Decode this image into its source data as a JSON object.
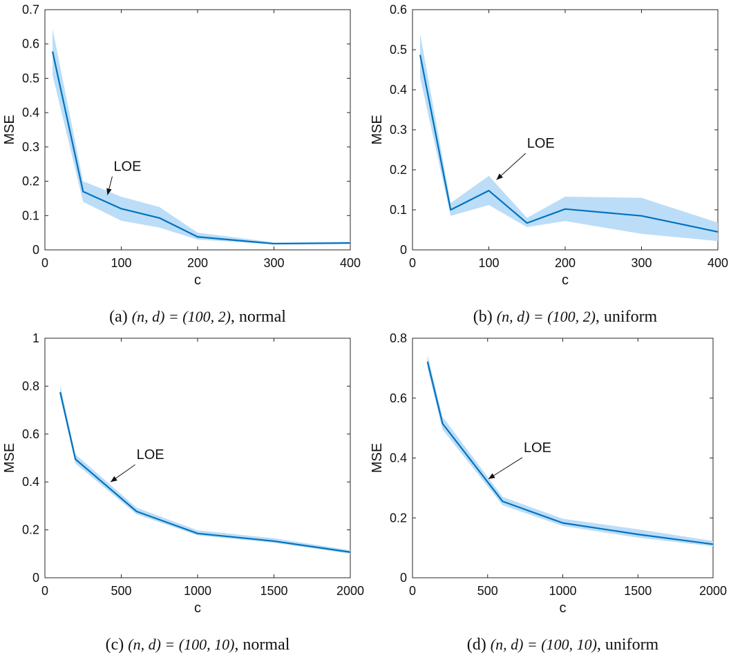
{
  "chart_data": [
    {
      "type": "line",
      "panel": "a",
      "caption_label": "(a)",
      "caption_math": "(n, d) = (100, 2)",
      "caption_suffix": ", normal",
      "xlabel": "c",
      "ylabel": "MSE",
      "xlim": [
        0,
        400
      ],
      "ylim": [
        0,
        0.7
      ],
      "xticks": [
        0,
        100,
        200,
        300,
        400
      ],
      "yticks": [
        0,
        0.1,
        0.2,
        0.3,
        0.4,
        0.5,
        0.6,
        0.7
      ],
      "xtick_labels": [
        "0",
        "100",
        "200",
        "300",
        "400"
      ],
      "ytick_labels": [
        "0",
        "0.1",
        "0.2",
        "0.3",
        "0.4",
        "0.5",
        "0.6",
        "0.7"
      ],
      "series": [
        {
          "name": "LOE",
          "x": [
            10,
            50,
            100,
            150,
            200,
            300,
            400
          ],
          "y": [
            0.578,
            0.17,
            0.12,
            0.093,
            0.038,
            0.018,
            0.02
          ],
          "lower": [
            0.51,
            0.14,
            0.085,
            0.065,
            0.03,
            0.016,
            0.017
          ],
          "upper": [
            0.645,
            0.2,
            0.155,
            0.125,
            0.05,
            0.022,
            0.024
          ]
        }
      ],
      "annotation": {
        "text": "LOE",
        "text_at": [
          90,
          0.23
        ],
        "arrow_to": [
          82,
          0.16
        ]
      },
      "color": "#0072BD",
      "band_color": "#BBDDF8"
    },
    {
      "type": "line",
      "panel": "b",
      "caption_label": "(b)",
      "caption_math": "(n, d) = (100, 2)",
      "caption_suffix": ", uniform",
      "xlabel": "c",
      "ylabel": "MSE",
      "xlim": [
        0,
        400
      ],
      "ylim": [
        0,
        0.6
      ],
      "xticks": [
        0,
        100,
        200,
        300,
        400
      ],
      "yticks": [
        0,
        0.1,
        0.2,
        0.3,
        0.4,
        0.5,
        0.6
      ],
      "xtick_labels": [
        "0",
        "100",
        "200",
        "300",
        "400"
      ],
      "ytick_labels": [
        "0",
        "0.1",
        "0.2",
        "0.3",
        "0.4",
        "0.5",
        "0.6"
      ],
      "series": [
        {
          "name": "LOE",
          "x": [
            10,
            50,
            100,
            150,
            200,
            300,
            400
          ],
          "y": [
            0.487,
            0.1,
            0.148,
            0.067,
            0.102,
            0.085,
            0.045
          ],
          "lower": [
            0.43,
            0.085,
            0.112,
            0.057,
            0.072,
            0.04,
            0.022
          ],
          "upper": [
            0.54,
            0.117,
            0.185,
            0.08,
            0.133,
            0.13,
            0.068
          ]
        }
      ],
      "annotation": {
        "text": "LOE",
        "text_at": [
          150,
          0.255
        ],
        "arrow_to": [
          110,
          0.175
        ]
      },
      "color": "#0072BD",
      "band_color": "#BBDDF8"
    },
    {
      "type": "line",
      "panel": "c",
      "caption_label": "(c)",
      "caption_math": "(n, d) = (100, 10)",
      "caption_suffix": ", normal",
      "xlabel": "c",
      "ylabel": "MSE",
      "xlim": [
        0,
        2000
      ],
      "ylim": [
        0,
        1
      ],
      "xticks": [
        0,
        500,
        1000,
        1500,
        2000
      ],
      "yticks": [
        0,
        0.2,
        0.4,
        0.6,
        0.8,
        1
      ],
      "xtick_labels": [
        "0",
        "500",
        "1000",
        "1500",
        "2000"
      ],
      "ytick_labels": [
        "0",
        "0.2",
        "0.4",
        "0.6",
        "0.8",
        "1"
      ],
      "series": [
        {
          "name": "LOE",
          "x": [
            100,
            200,
            600,
            1000,
            1500,
            2000
          ],
          "y": [
            0.775,
            0.495,
            0.277,
            0.185,
            0.153,
            0.107
          ],
          "lower": [
            0.755,
            0.477,
            0.265,
            0.177,
            0.146,
            0.1
          ],
          "upper": [
            0.805,
            0.515,
            0.293,
            0.198,
            0.165,
            0.115
          ]
        }
      ],
      "annotation": {
        "text": "LOE",
        "text_at": [
          600,
          0.495
        ],
        "arrow_to": [
          430,
          0.4
        ]
      },
      "color": "#0072BD",
      "band_color": "#BBDDF8"
    },
    {
      "type": "line",
      "panel": "d",
      "caption_label": "(d)",
      "caption_math": "(n, d) = (100, 10)",
      "caption_suffix": ", uniform",
      "xlabel": "c",
      "ylabel": "MSE",
      "xlim": [
        0,
        2000
      ],
      "ylim": [
        0,
        0.8
      ],
      "xticks": [
        0,
        500,
        1000,
        1500,
        2000
      ],
      "yticks": [
        0,
        0.2,
        0.4,
        0.6,
        0.8
      ],
      "xtick_labels": [
        "0",
        "500",
        "1000",
        "1500",
        "2000"
      ],
      "ytick_labels": [
        "0",
        "0.2",
        "0.4",
        "0.6",
        "0.8"
      ],
      "series": [
        {
          "name": "LOE",
          "x": [
            100,
            200,
            600,
            1000,
            1500,
            2000
          ],
          "y": [
            0.722,
            0.515,
            0.255,
            0.183,
            0.145,
            0.112
          ],
          "lower": [
            0.7,
            0.495,
            0.242,
            0.173,
            0.134,
            0.105
          ],
          "upper": [
            0.745,
            0.538,
            0.27,
            0.197,
            0.162,
            0.123
          ]
        }
      ],
      "annotation": {
        "text": "LOE",
        "text_at": [
          740,
          0.42
        ],
        "arrow_to": [
          505,
          0.33
        ]
      },
      "color": "#0072BD",
      "band_color": "#BBDDF8"
    }
  ]
}
